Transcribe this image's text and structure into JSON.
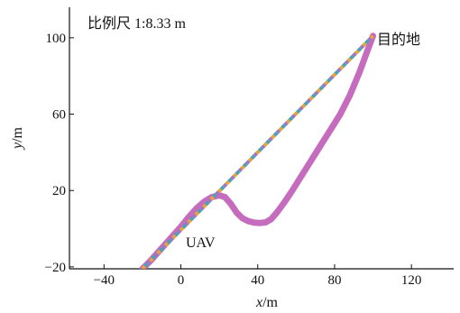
{
  "chart_data": {
    "type": "line",
    "title": "",
    "xlabel": "x/m",
    "ylabel": "y/m",
    "xlim": [
      -58,
      142
    ],
    "ylim": [
      -21,
      116
    ],
    "x_ticks": [
      -40,
      0,
      40,
      80,
      120
    ],
    "y_ticks": [
      -20,
      20,
      60,
      100
    ],
    "grid": false,
    "annotations": {
      "scale_text": "比例尺 1:8.33 m",
      "destination": "目的地",
      "uav": "UAV"
    },
    "series": [
      {
        "style": "dashed-multicolor",
        "colors": [
          "#e8a33d",
          "#4aa3b5",
          "#9a7ac0"
        ],
        "x": [
          -20,
          100
        ],
        "y": [
          -21,
          101
        ]
      },
      {
        "style": "thick-solid",
        "color": "#c060b8",
        "x": [
          -20,
          -16,
          -12,
          -8,
          -4,
          0,
          4,
          8,
          12,
          16,
          20,
          23,
          26,
          29,
          32,
          35,
          38,
          41,
          44,
          47,
          50,
          54,
          58,
          63,
          68,
          73,
          78,
          83,
          88,
          93,
          97,
          100
        ],
        "y": [
          -21,
          -17,
          -12.5,
          -8,
          -3.5,
          1,
          6,
          10.5,
          14,
          16.5,
          17.5,
          16.5,
          13,
          8.5,
          5.5,
          4,
          3.2,
          3,
          3.3,
          5,
          8.5,
          14,
          20,
          28,
          36,
          44,
          52,
          60,
          70,
          82,
          93,
          101
        ]
      }
    ]
  }
}
